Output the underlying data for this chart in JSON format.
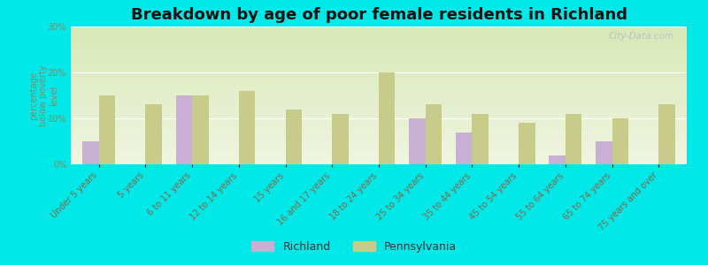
{
  "title": "Breakdown by age of poor female residents in Richland",
  "categories": [
    "Under 5 years",
    "5 years",
    "6 to 11 years",
    "12 to 14 years",
    "15 years",
    "16 and 17 years",
    "18 to 24 years",
    "25 to 34 years",
    "35 to 44 years",
    "45 to 54 years",
    "55 to 64 years",
    "65 to 74 years",
    "75 years and over"
  ],
  "richland": [
    5,
    0,
    15,
    0,
    0,
    0,
    0,
    10,
    7,
    0,
    2,
    5,
    0
  ],
  "pennsylvania": [
    15,
    13,
    15,
    16,
    12,
    11,
    20,
    13,
    11,
    9,
    11,
    10,
    13
  ],
  "richland_color": "#c9afd4",
  "pennsylvania_color": "#c8cc8a",
  "bg_top_color": "#d8e8b8",
  "bg_bottom_color": "#f0f5e0",
  "outer_bg": "#00e8e8",
  "ylabel": "percentage\nbelow poverty\nlevel",
  "ylim": [
    0,
    30
  ],
  "yticks": [
    0,
    10,
    20,
    30
  ],
  "bar_width": 0.35,
  "title_fontsize": 13,
  "label_fontsize": 7,
  "tick_fontsize": 7,
  "ylabel_fontsize": 7,
  "legend_fontsize": 9,
  "tick_color": "#888866",
  "xlabel_color": "#886644",
  "title_color": "#111111"
}
